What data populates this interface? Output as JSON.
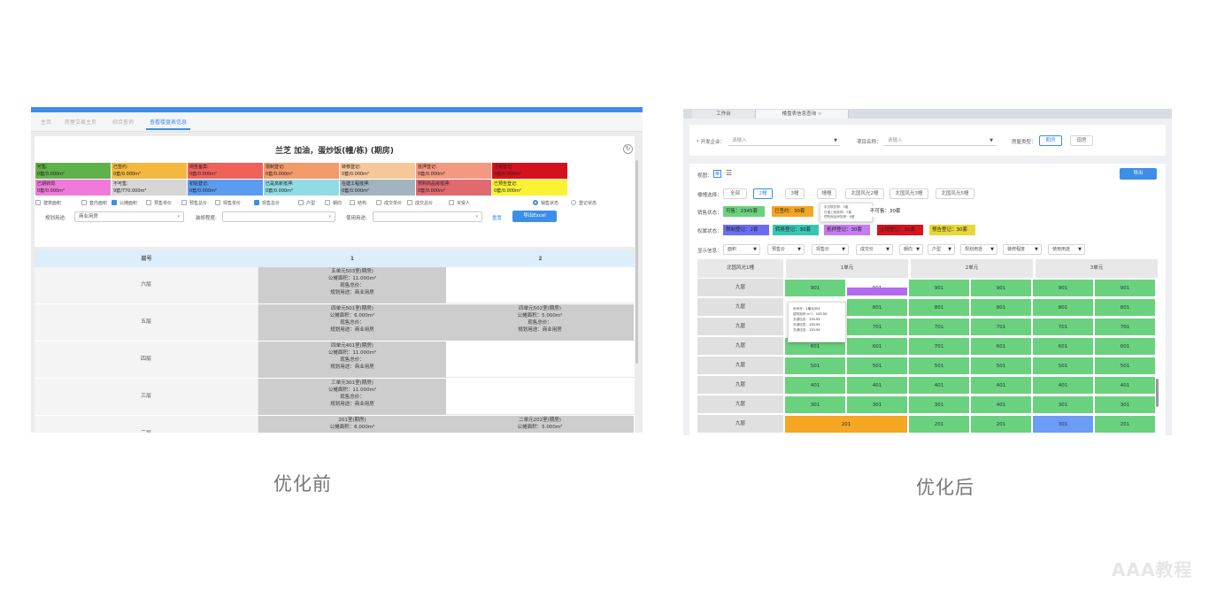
{
  "captions": {
    "before": "优化前",
    "after": "优化后"
  },
  "before": {
    "tabs": [
      "主页",
      "房屋交易主页",
      "综合查询",
      "查看楼盘表信息"
    ],
    "title": "兰芝 加油，蛋炒饭(幢/栋) (期房)",
    "legend": [
      {
        "label": "可售:",
        "value": "0套/0.000m²",
        "color": "#5fb14a"
      },
      {
        "label": "已签约:",
        "value": "0套/0.000m²",
        "color": "#f3b83d"
      },
      {
        "label": "网签备案:",
        "value": "0套/0.000m²",
        "color": "#f0615b"
      },
      {
        "label": "限制登记:",
        "value": "0套/0.000m²",
        "color": "#f39a6b"
      },
      {
        "label": "转移登记:",
        "value": "0套/0.000m²",
        "color": "#f7c79a"
      },
      {
        "label": "抵押登记:",
        "value": "0套/0.000m²",
        "color": "#f4997f"
      },
      {
        "label": "注销登记:",
        "value": "0套/0.000m²",
        "color": "#d4121f"
      },
      {
        "label": "已期转现:",
        "value": "0套/0.000m²",
        "color": "#ef7ad9"
      },
      {
        "label": "不可售:",
        "value": "9套/770.000m²",
        "color": "#d6d6d6"
      },
      {
        "label": "初始登记:",
        "value": "0套/0.000m²",
        "color": "#5c9cf0"
      },
      {
        "label": "已是高新抵押:",
        "value": "0套/0.000m²",
        "color": "#91dce3"
      },
      {
        "label": "在建工程抵押:",
        "value": "0套/0.000m²",
        "color": "#a2b4c0"
      },
      {
        "label": "预购商品房抵押:",
        "value": "0套/0.000m²",
        "color": "#e06a70"
      },
      {
        "label": "已预告登记:",
        "value": "0套/0.000m²",
        "color": "#fbf234"
      }
    ],
    "options": [
      {
        "label": "建筑面积",
        "on": false
      },
      {
        "label": "套内面积",
        "on": false
      },
      {
        "label": "公摊面积",
        "on": true
      },
      {
        "label": "预售单价",
        "on": false
      },
      {
        "label": "预售总价",
        "on": false
      },
      {
        "label": "现售单价",
        "on": false
      },
      {
        "label": "现售总价",
        "on": true
      },
      {
        "label": "户型",
        "on": false
      },
      {
        "label": "朝向",
        "on": false
      },
      {
        "label": "结构",
        "on": false
      },
      {
        "label": "成交单价",
        "on": false
      },
      {
        "label": "成交总价",
        "on": false
      },
      {
        "label": "买受人",
        "on": false
      }
    ],
    "radios": [
      {
        "label": "销售状态",
        "on": true
      },
      {
        "label": "登记状态",
        "on": false
      }
    ],
    "filters": {
      "plan_label": "规划用途:",
      "plan_value": "商业用房",
      "decor_label": "装修程度:",
      "decor_value": "",
      "use_label": "使用用途:",
      "use_value": ""
    },
    "reset": "重置",
    "export": "导出Excel",
    "grid_head": [
      "层号",
      "1",
      "2"
    ],
    "rows": [
      {
        "floor": "六层",
        "c1": [
          "五单元503室(期房)",
          "公摊面积：11.000m²",
          "现售总价：",
          "规划用途：商业用房"
        ],
        "c2": []
      },
      {
        "floor": "五层",
        "c1": [
          "四单元501室(期房)",
          "公摊面积：6.000m²",
          "现售总价：",
          "规划用途：商业用房"
        ],
        "c2": [
          "四单元502室(期房)",
          "公摊面积：5.000m²",
          "现售总价：",
          "规划用途：商业用房"
        ]
      },
      {
        "floor": "四层",
        "c1": [
          "四单元401室(期房)",
          "公摊面积：11.000m²",
          "现售总价：",
          "规划用途：商业用房"
        ],
        "c2": []
      },
      {
        "floor": "三层",
        "c1": [
          "三单元301室(期房)",
          "公摊面积：11.000m²",
          "现售总价：",
          "规划用途：商业用房"
        ],
        "c2": []
      },
      {
        "floor": "二层",
        "c1": [
          "201室(期房)",
          "公摊面积：6.000m²"
        ],
        "c2": [
          "二单元202室(期房)",
          "公摊面积：5.000m²"
        ]
      }
    ]
  },
  "after": {
    "tabs": [
      "工作台",
      "楼盘表信息查询"
    ],
    "dev_label": "* 开发企业：",
    "dev_placeholder": "请输入",
    "proj_label": "项目名称：",
    "proj_placeholder": "请输入",
    "type_label": "房屋类型：",
    "types": [
      {
        "label": "期房",
        "on": true
      },
      {
        "label": "现房",
        "on": false
      }
    ],
    "view_label": "视图：",
    "export": "导出",
    "building_label": "楼幢选择：",
    "buildings": [
      {
        "label": "全部",
        "on": false
      },
      {
        "label": "2幢",
        "on": true
      },
      {
        "label": "3幢",
        "on": false
      },
      {
        "label": "幢幢",
        "on": false
      },
      {
        "label": "北国风光2幢",
        "on": false
      },
      {
        "label": "北国风光3幢",
        "on": false
      },
      {
        "label": "北国风光5幢",
        "on": false
      }
    ],
    "sale_label": "销售状态：",
    "sale": [
      {
        "label": "可售：2345套",
        "color": "#6ad27e"
      },
      {
        "label": "已签约：30套",
        "color": "#f5a623"
      },
      {
        "label": "不可售：30套",
        "color": "#ffffff"
      }
    ],
    "sale_tip": [
      "未关联抵押：3套",
      "在建工程抵押：5套",
      "预购商品房抵押：6套"
    ],
    "right_label": "权属状态：",
    "rights": [
      {
        "label": "限制登记：2套",
        "color": "#6b6ef5"
      },
      {
        "label": "转移登记：30套",
        "color": "#35c6b4"
      },
      {
        "label": "抵押登记：30套",
        "color": "#c57cf2"
      },
      {
        "label": "注销登记：30套",
        "color": "#d8121f"
      },
      {
        "label": "预告登记：30套",
        "color": "#e9d736"
      }
    ],
    "display_label": "显示信息：",
    "display": [
      "面积",
      "预售价",
      "现售价",
      "成交价",
      "朝向",
      "户型",
      "规划用途",
      "装修程度",
      "使用用途"
    ],
    "grid_head": {
      "corner": "北国风光1幢",
      "units": [
        "1单元",
        "2单元",
        "3单元"
      ]
    },
    "rows": [
      {
        "floor": "九层",
        "cells": [
          "901",
          "901",
          "901",
          "901",
          "901",
          "901"
        ]
      },
      {
        "floor": "九层",
        "cells": [
          "",
          "801",
          "801",
          "801",
          "801",
          "801"
        ]
      },
      {
        "floor": "九层",
        "cells": [
          "",
          "701",
          "701",
          "701",
          "701",
          "701"
        ]
      },
      {
        "floor": "九层",
        "cells": [
          "601",
          "601",
          "701",
          "601",
          "601",
          "601"
        ]
      },
      {
        "floor": "九层",
        "cells": [
          "501",
          "501",
          "501",
          "501",
          "501",
          "501"
        ]
      },
      {
        "floor": "九层",
        "cells": [
          "401",
          "401",
          "401",
          "401",
          "401",
          "401"
        ]
      },
      {
        "floor": "九层",
        "cells": [
          "301",
          "301",
          "301",
          "401",
          "301",
          "301"
        ]
      },
      {
        "floor": "九层",
        "cells": [
          "201",
          "201",
          "201",
          "301",
          "201"
        ]
      }
    ],
    "tooltip": [
      [
        "房间号：",
        "1单元201"
      ],
      [
        "建筑面积(m²)：",
        "133.55"
      ],
      [
        "关键信息：",
        "133.55"
      ],
      [
        "关键信息：",
        "133.55"
      ],
      [
        "关键信息：",
        "133.55"
      ]
    ]
  },
  "watermark": "AAA教程",
  "colors": {
    "accent": "#3c8ee8",
    "green_cell": "#6ad27e",
    "orange_cell": "#f5a623",
    "blue_cell": "#6d9bf5"
  }
}
